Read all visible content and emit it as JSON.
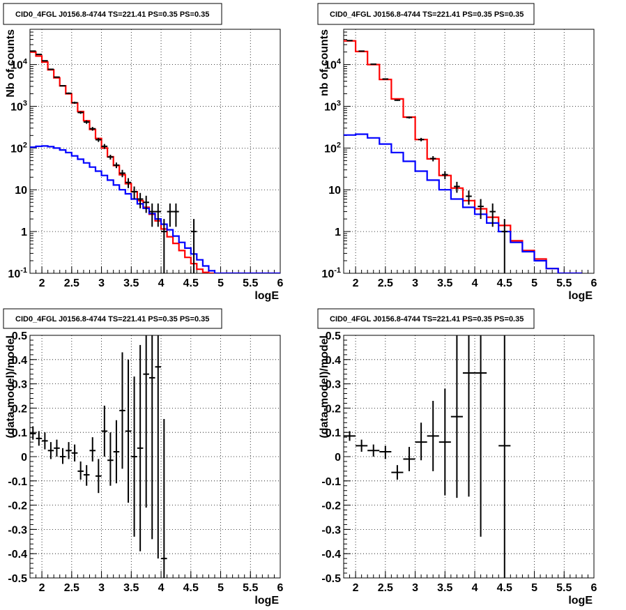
{
  "chart_data": [
    {
      "type": "line",
      "title": "CID0_4FGL J0156.8-4744 TS=221.41 PS=0.35 PS=0.35",
      "xlabel": "logE",
      "ylabel": "Nb of counts",
      "ylog": true,
      "xlim": [
        1.8,
        6.0
      ],
      "ylim": [
        0.1,
        70000
      ],
      "grid": true,
      "xticks": [
        "2",
        "2.5",
        "3",
        "3.5",
        "4",
        "4.5",
        "5",
        "5.5",
        "6"
      ],
      "yticks": [
        "10-1",
        "1",
        "10",
        "102",
        "103",
        "104"
      ],
      "bin_edges": [
        1.8,
        1.9,
        2.0,
        2.1,
        2.2,
        2.3,
        2.4,
        2.5,
        2.6,
        2.7,
        2.8,
        2.9,
        3.0,
        3.1,
        3.2,
        3.3,
        3.4,
        3.5,
        3.6,
        3.7,
        3.8,
        3.9,
        4.0,
        4.1,
        4.2,
        4.3,
        4.4,
        4.5,
        4.6,
        4.7,
        4.8,
        4.9,
        5.0,
        5.1,
        5.2,
        5.3,
        5.4,
        5.5,
        5.6,
        5.7,
        5.8,
        5.9,
        6.0
      ],
      "series": [
        {
          "color": "#ff0000",
          "values": [
            20000,
            16000,
            11500,
            7500,
            4800,
            3100,
            2000,
            1200,
            750,
            450,
            280,
            170,
            100,
            62,
            38,
            23,
            14,
            9,
            5.5,
            3.8,
            2.6,
            1.8,
            1.15,
            0.75,
            0.52,
            0.35,
            0.24,
            0.17,
            0.125,
            0.105,
            0.1,
            0.1,
            0.1,
            0.1,
            0.1,
            0.1,
            0.1,
            0.1,
            0.1,
            0.1,
            0.1,
            0.1
          ]
        },
        {
          "color": "#0000ff",
          "values": [
            105,
            110,
            112,
            108,
            100,
            90,
            78,
            65,
            54,
            44,
            35,
            28,
            22,
            17,
            13,
            10,
            8,
            6,
            4.6,
            3.6,
            2.7,
            2.0,
            1.5,
            1.1,
            0.78,
            0.55,
            0.4,
            0.29,
            0.21,
            0.15,
            0.115,
            0.1,
            0.1,
            0.1,
            0.1,
            0.1,
            0.1,
            0.1,
            0.1,
            0.1,
            0.1,
            0.1
          ]
        }
      ],
      "points": [
        {
          "x": 1.85,
          "y": 21000,
          "ylo": 20700,
          "yhi": 21300
        },
        {
          "x": 1.95,
          "y": 17500,
          "ylo": 17200,
          "yhi": 17800
        },
        {
          "x": 2.05,
          "y": 12300,
          "ylo": 12000,
          "yhi": 12600
        },
        {
          "x": 2.15,
          "y": 7700,
          "ylo": 7500,
          "yhi": 7900
        },
        {
          "x": 2.25,
          "y": 5000,
          "ylo": 4850,
          "yhi": 5150
        },
        {
          "x": 2.35,
          "y": 3100,
          "ylo": 3000,
          "yhi": 3200
        },
        {
          "x": 2.45,
          "y": 2050,
          "ylo": 1960,
          "yhi": 2140
        },
        {
          "x": 2.55,
          "y": 1220,
          "ylo": 1150,
          "yhi": 1290
        },
        {
          "x": 2.65,
          "y": 710,
          "ylo": 660,
          "yhi": 760
        },
        {
          "x": 2.75,
          "y": 420,
          "ylo": 380,
          "yhi": 460
        },
        {
          "x": 2.85,
          "y": 290,
          "ylo": 260,
          "yhi": 320
        },
        {
          "x": 2.95,
          "y": 158,
          "ylo": 140,
          "yhi": 176
        },
        {
          "x": 3.05,
          "y": 110,
          "ylo": 95,
          "yhi": 125
        },
        {
          "x": 3.15,
          "y": 61,
          "ylo": 53,
          "yhi": 69
        },
        {
          "x": 3.25,
          "y": 39,
          "ylo": 33,
          "yhi": 45
        },
        {
          "x": 3.35,
          "y": 25,
          "ylo": 20,
          "yhi": 30
        },
        {
          "x": 3.45,
          "y": 15,
          "ylo": 11,
          "yhi": 19
        },
        {
          "x": 3.55,
          "y": 9,
          "ylo": 6,
          "yhi": 12
        },
        {
          "x": 3.65,
          "y": 6,
          "ylo": 3.6,
          "yhi": 8.4
        },
        {
          "x": 3.75,
          "y": 5,
          "ylo": 2.8,
          "yhi": 7.2
        },
        {
          "x": 3.85,
          "y": 3,
          "ylo": 1.3,
          "yhi": 4.7
        },
        {
          "x": 3.95,
          "y": 3,
          "ylo": 1.3,
          "yhi": 4.7
        },
        {
          "x": 4.05,
          "y": 1,
          "ylo": 0.1,
          "yhi": 2.0
        },
        {
          "x": 4.15,
          "y": 3,
          "ylo": 1.3,
          "yhi": 4.7
        },
        {
          "x": 4.25,
          "y": 3,
          "ylo": 1.3,
          "yhi": 4.7
        },
        {
          "x": 4.55,
          "y": 1,
          "ylo": 0.1,
          "yhi": 2.0
        }
      ]
    },
    {
      "type": "line",
      "title": "CID0_4FGL J0156.8-4744 TS=221.41 PS=0.35 PS=0.35",
      "xlabel": "logE",
      "ylabel": "nb of counts",
      "ylog": true,
      "xlim": [
        1.8,
        6.0
      ],
      "ylim": [
        0.1,
        70000
      ],
      "grid": true,
      "xticks": [
        "2",
        "2.5",
        "3",
        "3.5",
        "4",
        "4.5",
        "5",
        "5.5",
        "6"
      ],
      "yticks": [
        "10-1",
        "1",
        "10",
        "102",
        "103",
        "104"
      ],
      "bin_edges": [
        1.8,
        2.0,
        2.2,
        2.4,
        2.6,
        2.8,
        3.0,
        3.2,
        3.4,
        3.6,
        3.8,
        4.0,
        4.2,
        4.4,
        4.6,
        4.8,
        5.0,
        5.2,
        5.4,
        5.6,
        5.8,
        6.0
      ],
      "series": [
        {
          "color": "#ff0000",
          "values": [
            37000,
            20500,
            10000,
            4400,
            1500,
            550,
            160,
            55,
            22,
            11,
            5.5,
            3.5,
            2.2,
            1.4,
            0.6,
            0.35,
            0.22,
            0.13,
            0.1,
            0.1
          ]
        },
        {
          "color": "#0000ff",
          "values": [
            205,
            215,
            175,
            125,
            78,
            48,
            28,
            17,
            10,
            6,
            3.8,
            2.6,
            1.6,
            1.0,
            0.55,
            0.33,
            0.2,
            0.13,
            0.1,
            0.1
          ]
        }
      ],
      "points": [
        {
          "x": 1.9,
          "y": 37500,
          "ylo": 37300,
          "yhi": 37700
        },
        {
          "x": 2.1,
          "y": 21000,
          "ylo": 20800,
          "yhi": 21200
        },
        {
          "x": 2.3,
          "y": 10200,
          "ylo": 10000,
          "yhi": 10400
        },
        {
          "x": 2.5,
          "y": 4500,
          "ylo": 4400,
          "yhi": 4600
        },
        {
          "x": 2.7,
          "y": 1400,
          "ylo": 1350,
          "yhi": 1450
        },
        {
          "x": 2.9,
          "y": 540,
          "ylo": 510,
          "yhi": 570
        },
        {
          "x": 3.1,
          "y": 160,
          "ylo": 145,
          "yhi": 175
        },
        {
          "x": 3.3,
          "y": 56,
          "ylo": 48,
          "yhi": 64
        },
        {
          "x": 3.5,
          "y": 23,
          "ylo": 18,
          "yhi": 28
        },
        {
          "x": 3.7,
          "y": 12,
          "ylo": 8.5,
          "yhi": 15.5
        },
        {
          "x": 3.9,
          "y": 7,
          "ylo": 4.4,
          "yhi": 9.6
        },
        {
          "x": 4.1,
          "y": 4,
          "ylo": 2.0,
          "yhi": 6.0
        },
        {
          "x": 4.3,
          "y": 3,
          "ylo": 1.3,
          "yhi": 4.7
        },
        {
          "x": 4.5,
          "y": 1,
          "ylo": 0.1,
          "yhi": 2.0
        }
      ]
    },
    {
      "type": "scatter",
      "title": "CID0_4FGL J0156.8-4744 TS=221.41 PS=0.35 PS=0.35",
      "xlabel": "logE",
      "ylabel": "(data-model)/model",
      "xlim": [
        1.8,
        6.0
      ],
      "ylim": [
        -0.5,
        0.5
      ],
      "grid": true,
      "xticks": [
        "2",
        "2.5",
        "3",
        "3.5",
        "4",
        "4.5",
        "5",
        "5.5",
        "6"
      ],
      "yticks": [
        "-0.5",
        "-0.4",
        "-0.3",
        "-0.2",
        "-0.1",
        "0",
        "0.1",
        "0.2",
        "0.3",
        "0.4",
        "0.5"
      ],
      "points": [
        {
          "x": 1.85,
          "xerr": 0.05,
          "y": 0.095,
          "ylo": 0.07,
          "yhi": 0.125
        },
        {
          "x": 1.95,
          "xerr": 0.05,
          "y": 0.075,
          "ylo": 0.045,
          "yhi": 0.105
        },
        {
          "x": 2.05,
          "xerr": 0.05,
          "y": 0.065,
          "ylo": 0.03,
          "yhi": 0.1
        },
        {
          "x": 2.15,
          "xerr": 0.05,
          "y": 0.025,
          "ylo": -0.01,
          "yhi": 0.06
        },
        {
          "x": 2.25,
          "xerr": 0.05,
          "y": 0.035,
          "ylo": 0.0,
          "yhi": 0.07
        },
        {
          "x": 2.35,
          "xerr": 0.05,
          "y": 0.0,
          "ylo": -0.03,
          "yhi": 0.035
        },
        {
          "x": 2.45,
          "xerr": 0.05,
          "y": 0.025,
          "ylo": -0.01,
          "yhi": 0.06
        },
        {
          "x": 2.55,
          "xerr": 0.05,
          "y": 0.015,
          "ylo": -0.02,
          "yhi": 0.05
        },
        {
          "x": 2.65,
          "xerr": 0.05,
          "y": -0.06,
          "ylo": -0.095,
          "yhi": -0.02
        },
        {
          "x": 2.75,
          "xerr": 0.05,
          "y": -0.075,
          "ylo": -0.12,
          "yhi": -0.035
        },
        {
          "x": 2.85,
          "xerr": 0.05,
          "y": 0.025,
          "ylo": -0.02,
          "yhi": 0.08
        },
        {
          "x": 2.95,
          "xerr": 0.05,
          "y": -0.08,
          "ylo": -0.15,
          "yhi": -0.01
        },
        {
          "x": 3.05,
          "xerr": 0.05,
          "y": 0.105,
          "ylo": 0.0,
          "yhi": 0.21
        },
        {
          "x": 3.15,
          "xerr": 0.05,
          "y": -0.015,
          "ylo": -0.12,
          "yhi": 0.1
        },
        {
          "x": 3.25,
          "xerr": 0.05,
          "y": 0.02,
          "ylo": -0.11,
          "yhi": 0.15
        },
        {
          "x": 3.35,
          "xerr": 0.05,
          "y": 0.19,
          "ylo": -0.05,
          "yhi": 0.43
        },
        {
          "x": 3.45,
          "xerr": 0.05,
          "y": 0.105,
          "ylo": -0.19,
          "yhi": 0.4
        },
        {
          "x": 3.55,
          "xerr": 0.05,
          "y": 0.0,
          "ylo": -0.33,
          "yhi": 0.33
        },
        {
          "x": 3.65,
          "xerr": 0.05,
          "y": 0.035,
          "ylo": -0.39,
          "yhi": 0.46
        },
        {
          "x": 3.75,
          "xerr": 0.05,
          "y": 0.34,
          "ylo": -0.21,
          "yhi": 0.5
        },
        {
          "x": 3.85,
          "xerr": 0.05,
          "y": 0.325,
          "ylo": -0.34,
          "yhi": 0.5
        },
        {
          "x": 3.95,
          "xerr": 0.05,
          "y": 0.37,
          "ylo": -0.42,
          "yhi": 0.5
        },
        {
          "x": 4.05,
          "xerr": 0.05,
          "y": -0.42,
          "ylo": -0.5,
          "yhi": 0.155
        }
      ]
    },
    {
      "type": "scatter",
      "title": "CID0_4FGL J0156.8-4744 TS=221.41 PS=0.35 PS=0.35",
      "xlabel": "logE",
      "ylabel": "(data-model)/model",
      "xlim": [
        1.8,
        6.0
      ],
      "ylim": [
        -0.5,
        0.5
      ],
      "grid": true,
      "xticks": [
        "2",
        "2.5",
        "3",
        "3.5",
        "4",
        "4.5",
        "5",
        "5.5",
        "6"
      ],
      "yticks": [
        "-0.5",
        "-0.4",
        "-0.3",
        "-0.2",
        "-0.1",
        "0",
        "0.1",
        "0.2",
        "0.3",
        "0.4",
        "0.5"
      ],
      "points": [
        {
          "x": 1.9,
          "xerr": 0.1,
          "y": 0.085,
          "ylo": 0.065,
          "yhi": 0.105
        },
        {
          "x": 2.1,
          "xerr": 0.1,
          "y": 0.045,
          "ylo": 0.02,
          "yhi": 0.07
        },
        {
          "x": 2.3,
          "xerr": 0.1,
          "y": 0.025,
          "ylo": 0.0,
          "yhi": 0.05
        },
        {
          "x": 2.5,
          "xerr": 0.1,
          "y": 0.02,
          "ylo": -0.01,
          "yhi": 0.045
        },
        {
          "x": 2.7,
          "xerr": 0.1,
          "y": -0.065,
          "ylo": -0.095,
          "yhi": -0.035
        },
        {
          "x": 2.9,
          "xerr": 0.1,
          "y": -0.01,
          "ylo": -0.06,
          "yhi": 0.04
        },
        {
          "x": 3.1,
          "xerr": 0.1,
          "y": 0.06,
          "ylo": -0.015,
          "yhi": 0.14
        },
        {
          "x": 3.3,
          "xerr": 0.1,
          "y": 0.085,
          "ylo": -0.06,
          "yhi": 0.23
        },
        {
          "x": 3.5,
          "xerr": 0.1,
          "y": 0.06,
          "ylo": -0.16,
          "yhi": 0.28
        },
        {
          "x": 3.7,
          "xerr": 0.1,
          "y": 0.165,
          "ylo": -0.17,
          "yhi": 0.5
        },
        {
          "x": 3.9,
          "xerr": 0.1,
          "y": 0.345,
          "ylo": -0.165,
          "yhi": 0.5
        },
        {
          "x": 4.1,
          "xerr": 0.1,
          "y": 0.345,
          "ylo": -0.33,
          "yhi": 0.5
        },
        {
          "x": 4.5,
          "xerr": 0.1,
          "y": 0.045,
          "ylo": -0.5,
          "yhi": 0.5
        }
      ]
    }
  ]
}
